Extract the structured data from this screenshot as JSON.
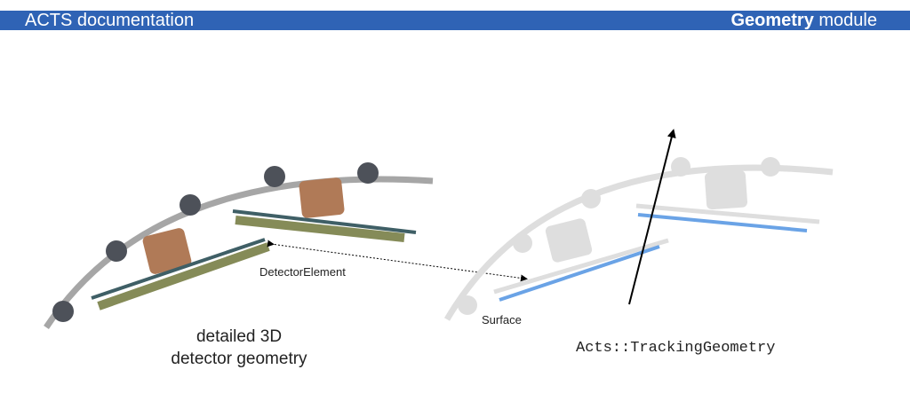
{
  "header": {
    "left_title": "ACTS documentation",
    "right_title_bold": "Geometry",
    "right_title_rest": " module"
  },
  "diagram": {
    "label_detector_element": "DetectorElement",
    "label_surface": "Surface",
    "caption_left_line1": "detailed 3D",
    "caption_left_line2": "detector geometry",
    "caption_right": "Acts::TrackingGeometry"
  },
  "colors": {
    "header_bg": "#2f63b5",
    "support_arc": "#a6a6a6",
    "cable_circle": "#4d5159",
    "module_box": "#b07a57",
    "sensor_dark": "#3f5f66",
    "sensor_olive": "#858b58",
    "surface_blue": "#6aa3e6",
    "ghost_gray": "#dedede",
    "track_line": "#000000"
  }
}
